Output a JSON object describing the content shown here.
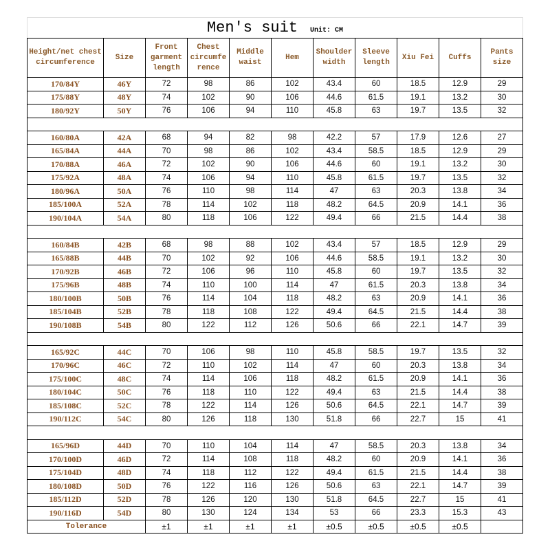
{
  "title": "Men's suit",
  "unit": "Unit: CM",
  "headers": [
    "Height/net chest circumference",
    "Size",
    "Front garment length",
    "Chest circumfe rence",
    "Middle waist",
    "Hem",
    "Shoulder width",
    "Sleeve length",
    "Xiu Fei",
    "Cuffs",
    "Pants size"
  ],
  "groups": [
    [
      [
        "170/84Y",
        "46Y",
        "72",
        "98",
        "86",
        "102",
        "43.4",
        "60",
        "18.5",
        "12.9",
        "29"
      ],
      [
        "175/88Y",
        "48Y",
        "74",
        "102",
        "90",
        "106",
        "44.6",
        "61.5",
        "19.1",
        "13.2",
        "30"
      ],
      [
        "180/92Y",
        "50Y",
        "76",
        "106",
        "94",
        "110",
        "45.8",
        "63",
        "19.7",
        "13.5",
        "32"
      ]
    ],
    [
      [
        "160/80A",
        "42A",
        "68",
        "94",
        "82",
        "98",
        "42.2",
        "57",
        "17.9",
        "12.6",
        "27"
      ],
      [
        "165/84A",
        "44A",
        "70",
        "98",
        "86",
        "102",
        "43.4",
        "58.5",
        "18.5",
        "12.9",
        "29"
      ],
      [
        "170/88A",
        "46A",
        "72",
        "102",
        "90",
        "106",
        "44.6",
        "60",
        "19.1",
        "13.2",
        "30"
      ],
      [
        "175/92A",
        "48A",
        "74",
        "106",
        "94",
        "110",
        "45.8",
        "61.5",
        "19.7",
        "13.5",
        "32"
      ],
      [
        "180/96A",
        "50A",
        "76",
        "110",
        "98",
        "114",
        "47",
        "63",
        "20.3",
        "13.8",
        "34"
      ],
      [
        "185/100A",
        "52A",
        "78",
        "114",
        "102",
        "118",
        "48.2",
        "64.5",
        "20.9",
        "14.1",
        "36"
      ],
      [
        "190/104A",
        "54A",
        "80",
        "118",
        "106",
        "122",
        "49.4",
        "66",
        "21.5",
        "14.4",
        "38"
      ]
    ],
    [
      [
        "160/84B",
        "42B",
        "68",
        "98",
        "88",
        "102",
        "43.4",
        "57",
        "18.5",
        "12.9",
        "29"
      ],
      [
        "165/88B",
        "44B",
        "70",
        "102",
        "92",
        "106",
        "44.6",
        "58.5",
        "19.1",
        "13.2",
        "30"
      ],
      [
        "170/92B",
        "46B",
        "72",
        "106",
        "96",
        "110",
        "45.8",
        "60",
        "19.7",
        "13.5",
        "32"
      ],
      [
        "175/96B",
        "48B",
        "74",
        "110",
        "100",
        "114",
        "47",
        "61.5",
        "20.3",
        "13.8",
        "34"
      ],
      [
        "180/100B",
        "50B",
        "76",
        "114",
        "104",
        "118",
        "48.2",
        "63",
        "20.9",
        "14.1",
        "36"
      ],
      [
        "185/104B",
        "52B",
        "78",
        "118",
        "108",
        "122",
        "49.4",
        "64.5",
        "21.5",
        "14.4",
        "38"
      ],
      [
        "190/108B",
        "54B",
        "80",
        "122",
        "112",
        "126",
        "50.6",
        "66",
        "22.1",
        "14.7",
        "39"
      ]
    ],
    [
      [
        "165/92C",
        "44C",
        "70",
        "106",
        "98",
        "110",
        "45.8",
        "58.5",
        "19.7",
        "13.5",
        "32"
      ],
      [
        "170/96C",
        "46C",
        "72",
        "110",
        "102",
        "114",
        "47",
        "60",
        "20.3",
        "13.8",
        "34"
      ],
      [
        "175/100C",
        "48C",
        "74",
        "114",
        "106",
        "118",
        "48.2",
        "61.5",
        "20.9",
        "14.1",
        "36"
      ],
      [
        "180/104C",
        "50C",
        "76",
        "118",
        "110",
        "122",
        "49.4",
        "63",
        "21.5",
        "14.4",
        "38"
      ],
      [
        "185/108C",
        "52C",
        "78",
        "122",
        "114",
        "126",
        "50.6",
        "64.5",
        "22.1",
        "14.7",
        "39"
      ],
      [
        "190/112C",
        "54C",
        "80",
        "126",
        "118",
        "130",
        "51.8",
        "66",
        "22.7",
        "15",
        "41"
      ]
    ],
    [
      [
        "165/96D",
        "44D",
        "70",
        "110",
        "104",
        "114",
        "47",
        "58.5",
        "20.3",
        "13.8",
        "34"
      ],
      [
        "170/100D",
        "46D",
        "72",
        "114",
        "108",
        "118",
        "48.2",
        "60",
        "20.9",
        "14.1",
        "36"
      ],
      [
        "175/104D",
        "48D",
        "74",
        "118",
        "112",
        "122",
        "49.4",
        "61.5",
        "21.5",
        "14.4",
        "38"
      ],
      [
        "180/108D",
        "50D",
        "76",
        "122",
        "116",
        "126",
        "50.6",
        "63",
        "22.1",
        "14.7",
        "39"
      ],
      [
        "185/112D",
        "52D",
        "78",
        "126",
        "120",
        "130",
        "51.8",
        "64.5",
        "22.7",
        "15",
        "41"
      ],
      [
        "190/116D",
        "54D",
        "80",
        "130",
        "124",
        "134",
        "53",
        "66",
        "23.3",
        "15.3",
        "43"
      ]
    ]
  ],
  "tolerance": {
    "label": "Tolerance",
    "values": [
      "±1",
      "±1",
      "±1",
      "±1",
      "±0.5",
      "±0.5",
      "±0.5",
      "±0.5",
      ""
    ]
  },
  "colors": {
    "label_text": "#8a5222",
    "border": "#000000"
  }
}
